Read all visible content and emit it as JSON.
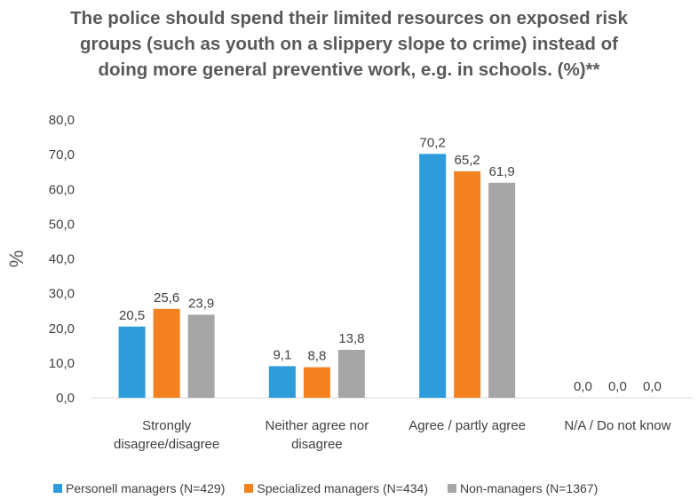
{
  "chart_data": {
    "type": "bar",
    "title_lines": [
      "The police should spend their limited resources on exposed risk",
      "groups (such as youth on a slippery slope to crime) instead of",
      "doing more general preventive work, e.g. in schools. (%)**"
    ],
    "ylabel": "%",
    "xlabel": "",
    "ylim": [
      0,
      80
    ],
    "yticks": [
      "0,0",
      "10,0",
      "20,0",
      "30,0",
      "40,0",
      "50,0",
      "60,0",
      "70,0",
      "80,0"
    ],
    "ytick_values": [
      0,
      10,
      20,
      30,
      40,
      50,
      60,
      70,
      80
    ],
    "categories": [
      [
        "Strongly",
        "disagree/disagree"
      ],
      [
        "Neither agree nor",
        "disagree"
      ],
      [
        "Agree / partly agree"
      ],
      [
        "N/A / Do not know"
      ]
    ],
    "series": [
      {
        "name": "Personell managers (N=429)",
        "color": "#2E9BDA",
        "values": [
          20.5,
          9.1,
          70.2,
          0.0
        ],
        "labels": [
          "20,5",
          "9,1",
          "70,2",
          "0,0"
        ]
      },
      {
        "name": "Specialized managers (N=434)",
        "color": "#F58220",
        "values": [
          25.6,
          8.8,
          65.2,
          0.0
        ],
        "labels": [
          "25,6",
          "8,8",
          "65,2",
          "0,0"
        ]
      },
      {
        "name": "Non-managers (N=1367)",
        "color": "#A6A6A6",
        "values": [
          23.9,
          13.8,
          61.9,
          0.0
        ],
        "labels": [
          "23,9",
          "13,8",
          "61,9",
          "0,0"
        ]
      }
    ],
    "grid": false,
    "legend_position": "bottom"
  }
}
